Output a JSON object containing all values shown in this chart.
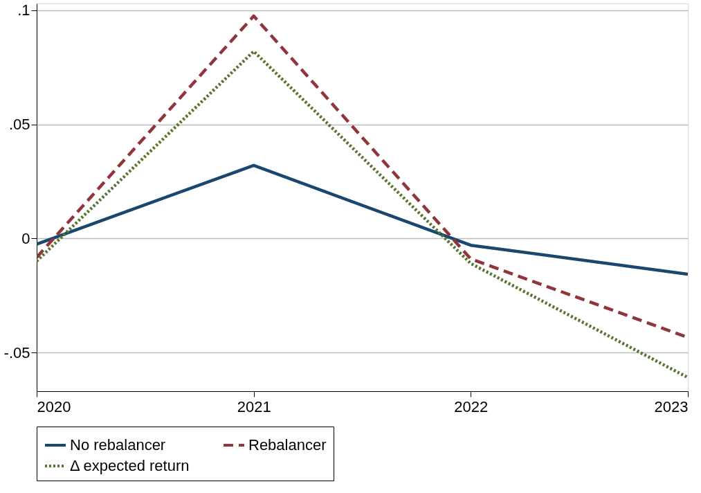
{
  "chart_data": {
    "type": "line",
    "x": [
      2020,
      2021,
      2022,
      2023
    ],
    "series": [
      {
        "name": "No rebalancer",
        "color": "#1a476f",
        "line_style": "solid",
        "values": [
          -0.0025,
          0.032,
          -0.003,
          -0.0157
        ]
      },
      {
        "name": "Rebalancer",
        "color": "#90353b",
        "line_style": "dashed",
        "values": [
          -0.0083,
          0.0975,
          -0.009,
          -0.0434
        ]
      },
      {
        "name": "Δ expected return",
        "color": "#55752f",
        "line_style": "dotted",
        "values": [
          -0.01,
          0.082,
          -0.011,
          -0.061
        ]
      }
    ],
    "xlim": [
      2020,
      2023
    ],
    "xticks": [
      2020,
      2021,
      2022,
      2023
    ],
    "ylim": [
      -0.067,
      0.103
    ],
    "yticks": [
      {
        "value": -0.05,
        "label": "-.05"
      },
      0,
      {
        "value": 0.05,
        "label": ".05"
      },
      {
        "value": 0.1,
        "label": ".1"
      }
    ],
    "grid": "y",
    "legend": "bottom",
    "marker": "none"
  }
}
